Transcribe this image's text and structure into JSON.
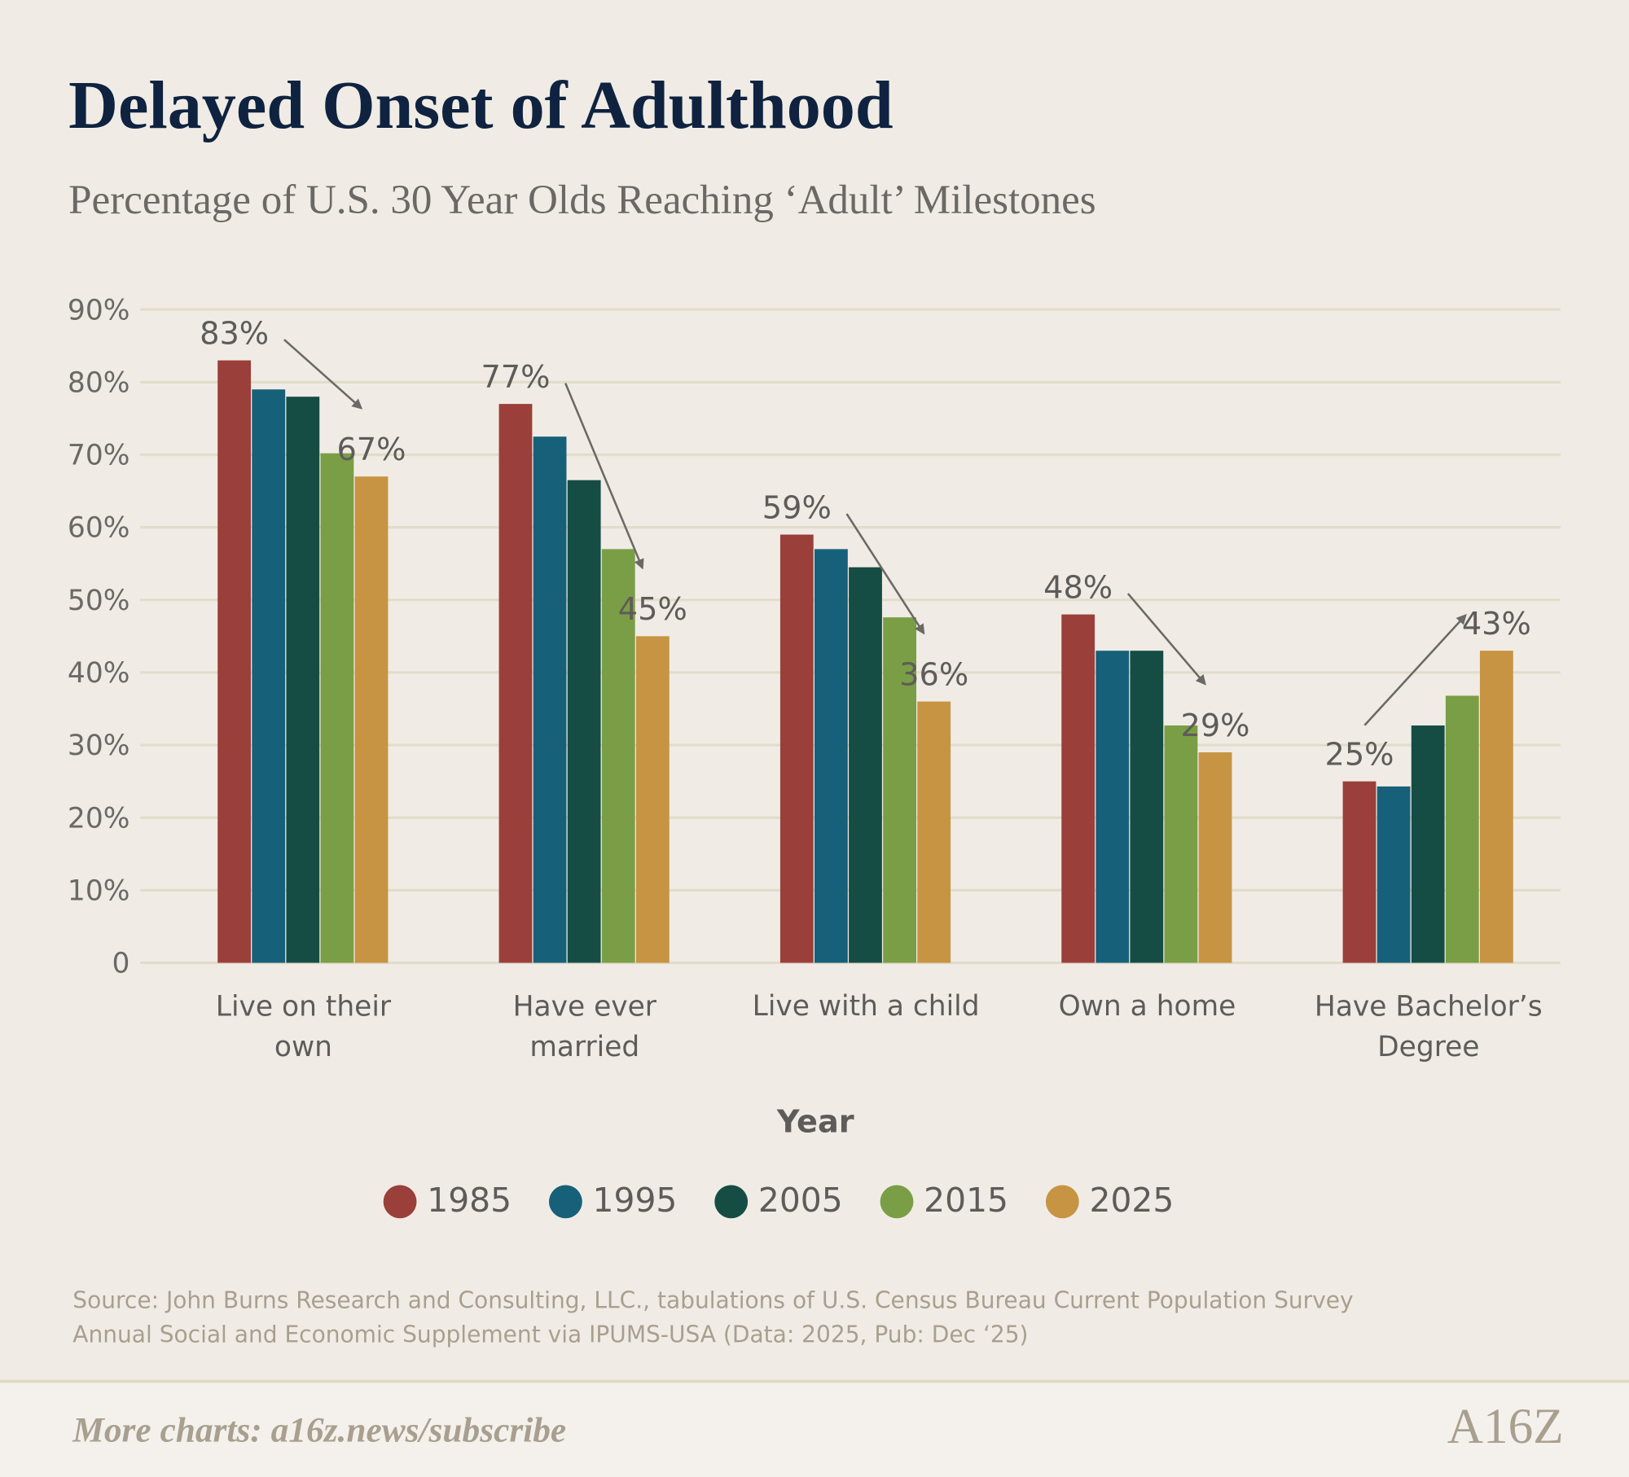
{
  "chart_data": {
    "type": "bar",
    "title": "Delayed Onset of Adulthood",
    "subtitle": "Percentage of U.S. 30 Year Olds Reaching ‘Adult’ Milestones",
    "categories": [
      "Live on their own",
      "Have ever married",
      "Live with a child",
      "Own a home",
      "Have Bachelor’s Degree"
    ],
    "legend_title": "Year",
    "series": [
      {
        "name": "1985",
        "color": "#9b3f3a",
        "values": [
          83,
          77,
          59,
          48,
          25
        ],
        "value_labels": [
          "83%",
          "77%",
          "59%",
          "48%",
          "25%"
        ]
      },
      {
        "name": "1995",
        "color": "#17607a",
        "values": [
          79,
          72.5,
          57,
          43,
          24.3
        ]
      },
      {
        "name": "2005",
        "color": "#154d45",
        "values": [
          78,
          66.5,
          54.5,
          43,
          32.7
        ]
      },
      {
        "name": "2015",
        "color": "#7a9e45",
        "values": [
          70.2,
          57,
          47.6,
          32.7,
          36.8
        ]
      },
      {
        "name": "2025",
        "color": "#c79443",
        "values": [
          67,
          45,
          36,
          29,
          43
        ],
        "value_labels": [
          "67%",
          "45%",
          "36%",
          "29%",
          "43%"
        ]
      }
    ],
    "ylim": [
      0,
      90
    ],
    "yticks": [
      0,
      {
        "value": 10,
        "label": "10%"
      },
      {
        "value": 20,
        "label": "20%"
      },
      {
        "value": 30,
        "label": "30%"
      },
      {
        "value": 40,
        "label": "40%"
      },
      {
        "value": 50,
        "label": "50%"
      },
      {
        "value": 60,
        "label": "60%"
      },
      {
        "value": 70,
        "label": "70%"
      },
      {
        "value": 80,
        "label": "80%"
      },
      {
        "value": 90,
        "label": "90%"
      }
    ],
    "grid": true,
    "source": [
      "Source: John Burns Research and Consulting, LLC., tabulations of U.S. Census Bureau Current Population Survey",
      "Annual Social and Economic Supplement via IPUMS-USA (Data: 2025, Pub: Dec ‘25)"
    ],
    "footer": "More charts: a16z.news/subscribe",
    "logo": "A16Z"
  }
}
